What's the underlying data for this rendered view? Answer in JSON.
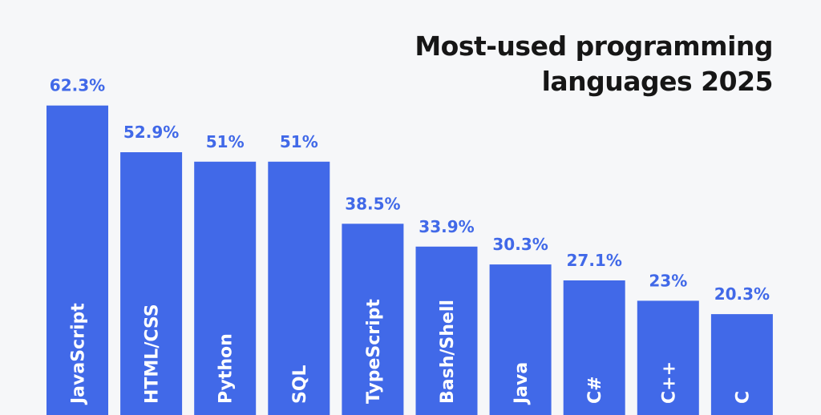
{
  "chart_data": {
    "type": "bar",
    "title_lines": [
      "Most-used programming",
      "languages 2025"
    ],
    "categories": [
      "JavaScript",
      "HTML/CSS",
      "Python",
      "SQL",
      "TypeScript",
      "Bash/Shell",
      "Java",
      "C#",
      "C++",
      "C"
    ],
    "values": [
      62.3,
      52.9,
      51,
      51,
      38.5,
      33.9,
      30.3,
      27.1,
      23,
      20.3
    ],
    "value_labels": [
      "62.3%",
      "52.9%",
      "51%",
      "51%",
      "38.5%",
      "33.9%",
      "30.3%",
      "27.1%",
      "23%",
      "20.3%"
    ],
    "unit": "%",
    "ylim": [
      0,
      100
    ],
    "grid": false,
    "legend": "none",
    "orientation": "vertical",
    "category_label_placement": "inside bar, rotated vertically"
  },
  "colors": {
    "bar": "#4169e8",
    "value_label": "#4169e8",
    "category_label": "#ffffff",
    "title": "#161616",
    "background": "#f6f7f9"
  }
}
